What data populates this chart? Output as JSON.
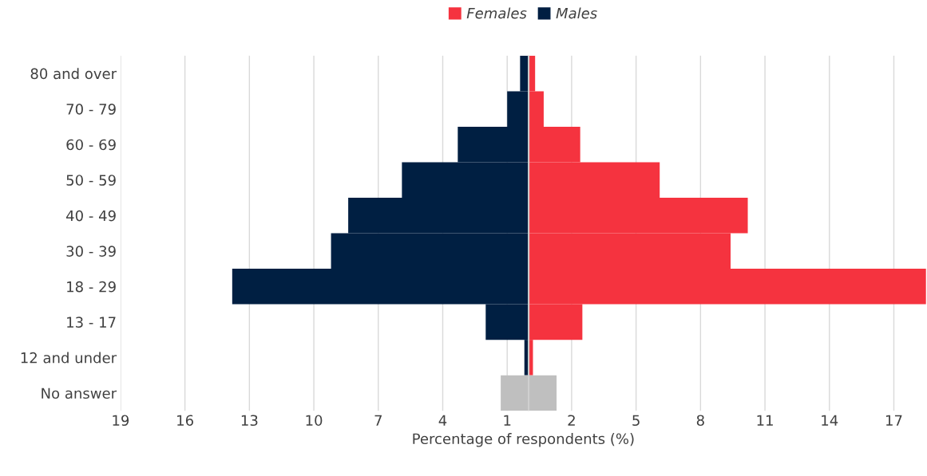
{
  "chart_data": {
    "type": "bar",
    "orientation": "horizontal",
    "xlabel": "Percentage of respondents (%)",
    "categories": [
      "80 and over",
      "70 - 79",
      "60 - 69",
      "50 - 59",
      "40 - 49",
      "30 - 39",
      "18 - 29",
      "13 - 17",
      "12 and under",
      "No answer"
    ],
    "series": [
      {
        "name": "Females",
        "color": "#f5333f",
        "values": [
          0.3,
          0.7,
          2.4,
          6.1,
          10.2,
          9.4,
          18.5,
          2.5,
          0.2,
          null
        ]
      },
      {
        "name": "Males",
        "color": "#001f42",
        "values": [
          -0.4,
          -1.0,
          -3.3,
          -5.9,
          -8.4,
          -9.2,
          -13.8,
          -2.0,
          -0.2,
          null
        ]
      },
      {
        "color": "#bfbfbf",
        "values": [
          null,
          null,
          null,
          null,
          null,
          null,
          null,
          null,
          null,
          1.3
        ]
      },
      {
        "color": "#bfbfbf",
        "values": [
          null,
          null,
          null,
          null,
          null,
          null,
          null,
          null,
          null,
          -1.3
        ]
      }
    ],
    "stacked": true,
    "xlim": [
      -19,
      18.5
    ],
    "xticks": [
      {
        "value": -19,
        "label": "19"
      },
      {
        "value": -16,
        "label": "16"
      },
      {
        "value": -13,
        "label": "13"
      },
      {
        "value": -10,
        "label": "10"
      },
      {
        "value": -7,
        "label": "7"
      },
      {
        "value": -4,
        "label": "4"
      },
      {
        "value": -1,
        "label": "1"
      },
      2,
      5,
      8,
      11,
      14,
      17
    ],
    "ref_lines": [
      {
        "axis": "x",
        "value": 0,
        "color": "#d0d0d0"
      }
    ],
    "grid": "x",
    "legend": "top"
  }
}
